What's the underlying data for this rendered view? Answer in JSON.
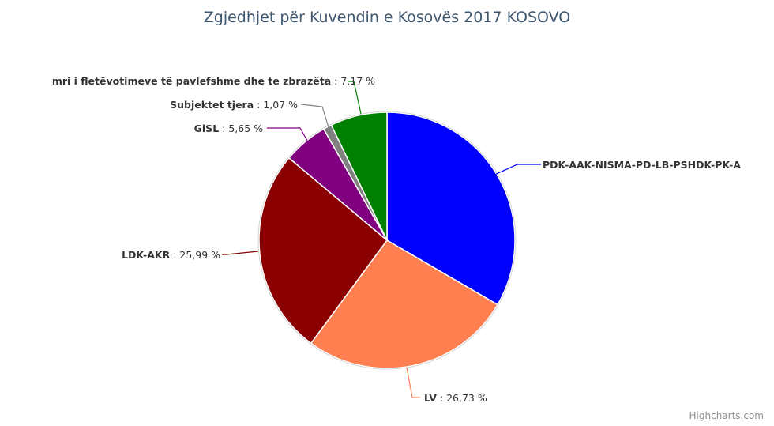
{
  "chart_data": {
    "type": "pie",
    "title": "Zgjedhjet për Kuvendin e Kosovës 2017 KOSOVO",
    "slices": [
      {
        "name": "PDK-AAK-NISMA-PD-LB-PSHDK-PK-A",
        "value": 33.39,
        "color": "#0000ff"
      },
      {
        "name": "LV",
        "value": 26.73,
        "color": "#ff7f50"
      },
      {
        "name": "LDK-AKR",
        "value": 25.99,
        "color": "#8b0000"
      },
      {
        "name": "GiSL",
        "value": 5.65,
        "color": "#800080"
      },
      {
        "name": "Subjektet tjera",
        "value": 1.07,
        "color": "#808080"
      },
      {
        "name": "Numri i fletëvotimeve të pavlefshme dhe te zbrazëta",
        "value": 7.17,
        "color": "#008000"
      }
    ],
    "data_labels": [
      {
        "name": "PDK-AAK-NISMA-PD-LB-PSHDK-PK-A",
        "value_text": ""
      },
      {
        "name": "LV",
        "value_text": " : 26,73 %"
      },
      {
        "name": "LDK-AKR",
        "value_text": " : 25,99 %"
      },
      {
        "name": "GiSL",
        "value_text": " : 5,65 %"
      },
      {
        "name": "Subjektet tjera",
        "value_text": " : 1,07 %"
      },
      {
        "name": "mri i fletëvotimeve të pavlefshme dhe te zbrazëta",
        "value_text": " : 7,17 %"
      }
    ],
    "legend": "none"
  },
  "credits": "Highcharts.com"
}
